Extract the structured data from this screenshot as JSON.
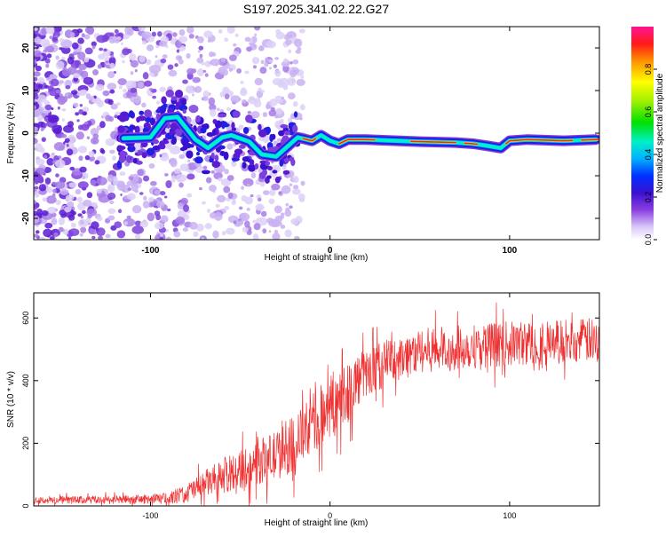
{
  "title": "S197.2025.341.02.22.G27",
  "colors": {
    "snr_line": "#f03030",
    "axis": "#000000"
  },
  "chart_data": [
    {
      "type": "heatmap",
      "name": "spectrogram",
      "xlabel": "Height of straight line (km)",
      "ylabel": "Frequency (Hz)",
      "xlim": [
        -165,
        150
      ],
      "ylim": [
        -25,
        25
      ],
      "xticks": [
        -100,
        0,
        100
      ],
      "yticks": [
        -20,
        -10,
        0,
        10,
        20
      ],
      "grid": false,
      "ridge": {
        "points": [
          [
            -115,
            -1.2
          ],
          [
            -100,
            -1.0
          ],
          [
            -92,
            3.5
          ],
          [
            -85,
            3.8
          ],
          [
            -75,
            -1.5
          ],
          [
            -68,
            -3.5
          ],
          [
            -60,
            -1.0
          ],
          [
            -55,
            -0.5
          ],
          [
            -45,
            -2.0
          ],
          [
            -38,
            -5.0
          ],
          [
            -30,
            -5.5
          ],
          [
            -22,
            -2.5
          ],
          [
            -18,
            -1.0
          ],
          [
            -10,
            -1.8
          ],
          [
            -5,
            -0.5
          ],
          [
            0,
            -1.8
          ],
          [
            5,
            -2.5
          ],
          [
            10,
            -1.5
          ],
          [
            20,
            -1.5
          ],
          [
            50,
            -2.0
          ],
          [
            70,
            -2.2
          ],
          [
            80,
            -2.5
          ],
          [
            88,
            -3.0
          ],
          [
            95,
            -3.5
          ],
          [
            100,
            -1.8
          ],
          [
            110,
            -1.5
          ],
          [
            130,
            -1.8
          ],
          [
            148,
            -1.5
          ]
        ]
      }
    },
    {
      "type": "colorbar",
      "name": "amplitude-scale",
      "label": "Normalized spectral amplitude",
      "range": [
        0.0,
        1.0
      ],
      "ticks": [
        "0.0",
        "0.2",
        "0.4",
        "0.6",
        "0.8"
      ]
    },
    {
      "type": "line",
      "name": "snr",
      "xlabel": "Height of straight line (km)",
      "ylabel": "SNR (10 * v/v)",
      "xlim": [
        -165,
        150
      ],
      "ylim": [
        0,
        680
      ],
      "xticks": [
        -100,
        0,
        100
      ],
      "yticks": [
        0,
        200,
        400,
        600
      ],
      "grid": false,
      "envelope": {
        "x": [
          -165,
          -110,
          -90,
          -80,
          -70,
          -60,
          -50,
          -40,
          -30,
          -20,
          -10,
          0,
          5,
          10,
          15,
          20,
          30,
          40,
          50,
          70,
          90,
          110,
          130,
          150
        ],
        "mean": [
          18,
          20,
          25,
          40,
          70,
          95,
          115,
          140,
          160,
          200,
          260,
          320,
          340,
          370,
          400,
          420,
          455,
          475,
          495,
          505,
          515,
          520,
          525,
          530
        ],
        "spread": [
          15,
          18,
          22,
          40,
          55,
          70,
          80,
          90,
          100,
          110,
          120,
          130,
          150,
          130,
          110,
          100,
          95,
          90,
          90,
          90,
          90,
          90,
          90,
          90
        ]
      }
    }
  ]
}
